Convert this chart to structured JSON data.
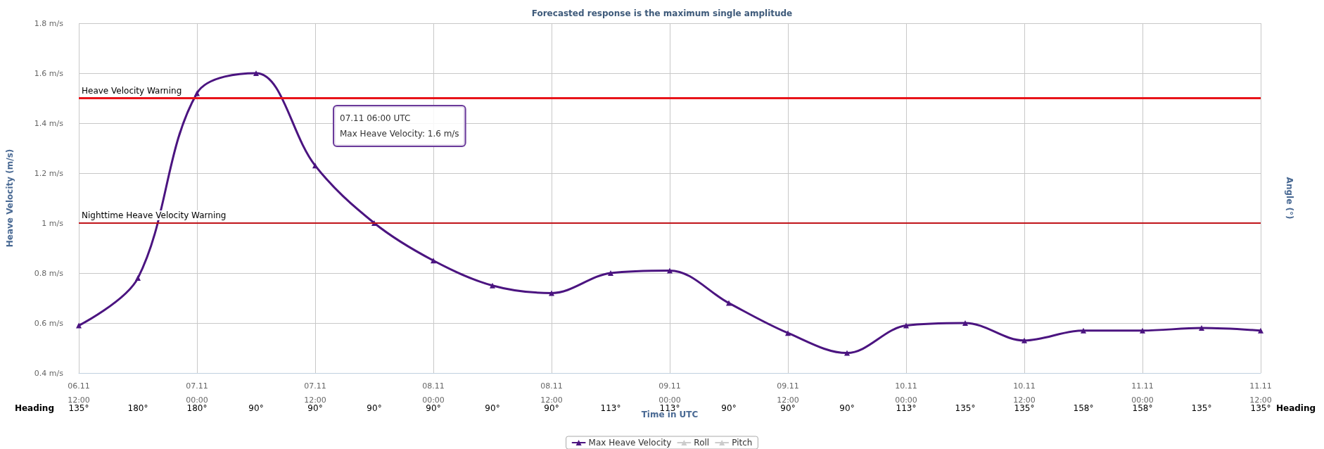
{
  "chart_data": {
    "type": "line",
    "title": "Forecasted response is the maximum single amplitude",
    "xlabel": "Time in UTC",
    "ylabel": "Heave Velocity (m/s)",
    "y2label": "Angle (°)",
    "categories": [
      "06.11\n12:00",
      null,
      "07.11\n00:00",
      null,
      "07.11\n12:00",
      null,
      "08.11\n00:00",
      null,
      "08.11\n12:00",
      null,
      "09.11\n00:00",
      null,
      "09.11\n12:00",
      null,
      "10.11\n00:00",
      null,
      "10.11\n12:00",
      null,
      "11.11\n00:00",
      null,
      "11.11\n12:00"
    ],
    "series": [
      {
        "name": "Max Heave Velocity",
        "color": "#4b1480",
        "values": [
          0.59,
          0.78,
          1.52,
          1.6,
          1.23,
          1.0,
          0.85,
          0.75,
          0.72,
          0.8,
          0.81,
          0.68,
          0.56,
          0.48,
          0.59,
          0.6,
          0.53,
          0.57,
          0.57,
          0.58,
          0.57
        ]
      },
      {
        "name": "Roll",
        "color": "#cccccc",
        "values": [
          null,
          null,
          null,
          null,
          null,
          null,
          null,
          null,
          null,
          null,
          null,
          null,
          null,
          null,
          null,
          null,
          null,
          null,
          null,
          null,
          null
        ]
      },
      {
        "name": "Pitch",
        "color": "#cccccc",
        "values": [
          null,
          null,
          null,
          null,
          null,
          null,
          null,
          null,
          null,
          null,
          null,
          null,
          null,
          null,
          null,
          null,
          null,
          null,
          null,
          null,
          null
        ]
      }
    ],
    "ylim": [
      0.4,
      1.8
    ],
    "yticks": [
      {
        "value": 0.4,
        "label": "0.4 m/s"
      },
      {
        "value": 0.6,
        "label": "0.6 m/s"
      },
      {
        "value": 0.8,
        "label": "0.8 m/s"
      },
      {
        "value": 1,
        "label": "1 m/s"
      },
      {
        "value": 1.2,
        "label": "1.2 m/s"
      },
      {
        "value": 1.4,
        "label": "1.4 m/s"
      },
      {
        "value": 1.6,
        "label": "1.6 m/s"
      },
      {
        "value": 1.8,
        "label": "1.8 m/s"
      }
    ],
    "ref_lines": [
      {
        "axis": "y",
        "value": 1.5,
        "label": "Heave Velocity Warning",
        "color": "#e8141a"
      },
      {
        "axis": "y",
        "value": 1,
        "label": "Nighttime Heave Velocity Warning",
        "color": "#c0141a"
      }
    ],
    "annotations": [
      "07.11 06:00 UTC\nMax Heave Velocity: 1.6 m/s",
      "Heading",
      "135°",
      "180°",
      "180°",
      "90°",
      "90°",
      "90°",
      "90°",
      "90°",
      "90°",
      "113°",
      "113°",
      "90°",
      "90°",
      "90°",
      "113°",
      "135°",
      "135°",
      "158°",
      "158°",
      "135°",
      "135°",
      "Heading"
    ],
    "grid": true,
    "legend": "bottom",
    "marker": "triangle",
    "line_style": "solid"
  }
}
